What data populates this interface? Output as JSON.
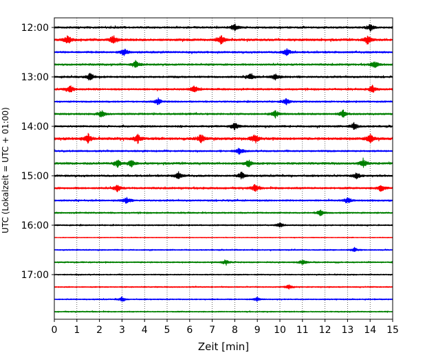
{
  "chart_data": {
    "type": "line",
    "title": "",
    "xlabel": "Zeit  [min]",
    "ylabel": "UTC (Lokalzeit = UTC + 01:00)",
    "xlim": [
      0,
      15
    ],
    "x_ticks": [
      "0",
      "1",
      "2",
      "3",
      "4",
      "5",
      "6",
      "7",
      "8",
      "9",
      "10",
      "11",
      "12",
      "13",
      "14",
      "15"
    ],
    "y_ticks": [
      "12:00",
      "13:00",
      "14:00",
      "15:00",
      "16:00",
      "17:00"
    ],
    "grid": "vertical dotted",
    "trace_interval_minutes": 15,
    "traces": [
      {
        "start": "12:00",
        "color": "#000000",
        "amplitude": 1.0,
        "events": [
          8.0,
          14.0
        ]
      },
      {
        "start": "12:15",
        "color": "#ff0000",
        "amplitude": 1.2,
        "events": [
          0.6,
          2.6,
          7.4,
          13.9
        ]
      },
      {
        "start": "12:30",
        "color": "#0000ff",
        "amplitude": 1.0,
        "events": [
          3.1,
          10.3
        ]
      },
      {
        "start": "12:45",
        "color": "#008000",
        "amplitude": 1.0,
        "events": [
          3.6,
          14.2
        ]
      },
      {
        "start": "13:00",
        "color": "#000000",
        "amplitude": 1.0,
        "events": [
          1.6,
          8.7,
          9.8
        ]
      },
      {
        "start": "13:15",
        "color": "#ff0000",
        "amplitude": 1.0,
        "events": [
          0.7,
          6.2,
          14.1
        ]
      },
      {
        "start": "13:30",
        "color": "#0000ff",
        "amplitude": 0.9,
        "events": [
          4.6,
          10.3
        ]
      },
      {
        "start": "13:45",
        "color": "#008000",
        "amplitude": 1.0,
        "events": [
          2.1,
          9.8,
          12.8
        ]
      },
      {
        "start": "14:00",
        "color": "#000000",
        "amplitude": 1.0,
        "events": [
          8.0,
          13.3
        ]
      },
      {
        "start": "14:15",
        "color": "#ff0000",
        "amplitude": 1.3,
        "events": [
          1.5,
          3.7,
          6.5,
          8.9,
          14.0
        ]
      },
      {
        "start": "14:30",
        "color": "#0000ff",
        "amplitude": 0.9,
        "events": [
          8.2
        ]
      },
      {
        "start": "14:45",
        "color": "#008000",
        "amplitude": 1.1,
        "events": [
          2.8,
          3.4,
          8.6,
          13.7
        ]
      },
      {
        "start": "15:00",
        "color": "#000000",
        "amplitude": 1.0,
        "events": [
          5.5,
          8.3,
          13.4
        ]
      },
      {
        "start": "15:15",
        "color": "#ff0000",
        "amplitude": 1.0,
        "events": [
          2.8,
          8.9,
          14.5
        ]
      },
      {
        "start": "15:30",
        "color": "#0000ff",
        "amplitude": 0.9,
        "events": [
          3.2,
          13.0
        ]
      },
      {
        "start": "15:45",
        "color": "#008000",
        "amplitude": 0.8,
        "events": [
          11.8
        ]
      },
      {
        "start": "16:00",
        "color": "#000000",
        "amplitude": 0.7,
        "events": [
          10.0
        ]
      },
      {
        "start": "16:15",
        "color": "#ff0000",
        "amplitude": 0.4,
        "events": []
      },
      {
        "start": "16:30",
        "color": "#0000ff",
        "amplitude": 0.6,
        "events": [
          13.3
        ]
      },
      {
        "start": "16:45",
        "color": "#008000",
        "amplitude": 0.7,
        "events": [
          7.6,
          11.0
        ]
      },
      {
        "start": "17:00",
        "color": "#000000",
        "amplitude": 0.6,
        "events": []
      },
      {
        "start": "17:15",
        "color": "#ff0000",
        "amplitude": 0.6,
        "events": [
          10.4
        ]
      },
      {
        "start": "17:30",
        "color": "#0000ff",
        "amplitude": 0.6,
        "events": [
          3.0,
          9.0
        ]
      },
      {
        "start": "17:45",
        "color": "#008000",
        "amplitude": 0.6,
        "events": []
      }
    ]
  }
}
